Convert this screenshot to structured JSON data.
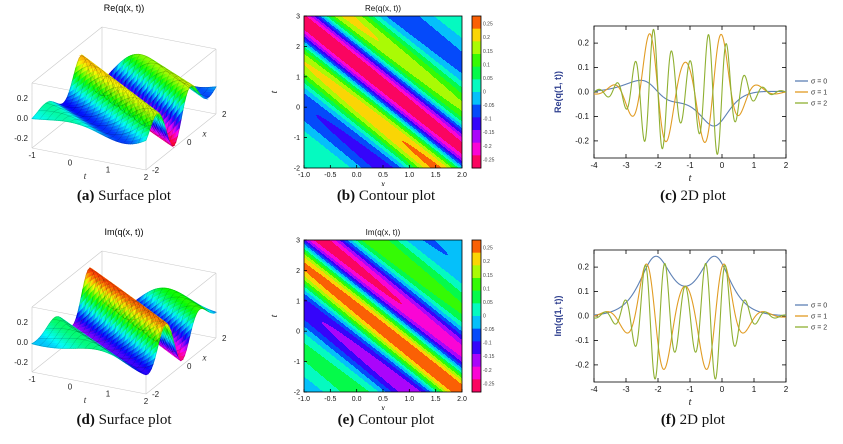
{
  "figure": {
    "background": "#ffffff",
    "captions": [
      {
        "tag": "(a)",
        "text": "Surface plot"
      },
      {
        "tag": "(b)",
        "text": "Contour plot"
      },
      {
        "tag": "(c)",
        "text": "2D plot"
      },
      {
        "tag": "(d)",
        "text": "Surface plot"
      },
      {
        "tag": "(e)",
        "text": "Contour plot"
      },
      {
        "tag": "(f)",
        "text": "2D plot"
      }
    ]
  },
  "chart_data": [
    {
      "id": "a",
      "type": "surface3d",
      "title": "Re(q(x, t))",
      "xlabel": "t",
      "ylabel": "x",
      "t_range": [
        -1,
        2
      ],
      "x_range": [
        -2,
        2
      ],
      "t_ticks": [
        "-1",
        "0",
        "1",
        "2"
      ],
      "x_ticks": [
        "-2",
        "0",
        "2"
      ],
      "z_ticks": [
        "0.2",
        "0.0",
        "-0.2"
      ],
      "zlim": [
        -0.3,
        0.3
      ],
      "colormap": "rainbow wheel: min=magenta/red, mid(0)=cyan, max=red",
      "function": "Re q(x,t) = 0.28 sech(x + 0.6 t - 0.8) cos(3 x + 2.2 t)",
      "model": {
        "A": 0.28,
        "env_k": 1.0,
        "env_ct": 0.6,
        "env_c0": -0.8,
        "ph_x": 3.0,
        "ph_t": 2.2,
        "part": "re"
      }
    },
    {
      "id": "b",
      "type": "contour",
      "title": "Re(q(x, t))",
      "xlabel": "x",
      "ylabel": "t",
      "x_range": [
        -1,
        2
      ],
      "y_range": [
        -2,
        3
      ],
      "x_tick_values": [
        -1,
        -0.5,
        0,
        0.5,
        1,
        1.5,
        2
      ],
      "x_tick_labels": [
        "-1.0",
        "-0.5",
        "0.0",
        "0.5",
        "1.0",
        "1.5",
        "2.0"
      ],
      "y_tick_values": [
        -2,
        -1,
        0,
        1,
        2,
        3
      ],
      "y_tick_labels": [
        "-2",
        "-1",
        "0",
        "1",
        "2",
        "3"
      ],
      "levels": 12,
      "zmax": 0.28,
      "colorbar": {
        "ticks": [
          0.25,
          0.2,
          0.15,
          0.1,
          0.05,
          0,
          -0.05,
          -0.1,
          -0.15,
          -0.2,
          -0.25
        ]
      },
      "colormap": "rainbow wheel: min=magenta/red, mid(0)=cyan, max=red",
      "model": {
        "A": 0.28,
        "env_k": 1.0,
        "env_ct": 0.6,
        "env_c0": -0.8,
        "ph_x": 3.0,
        "ph_t": 2.2,
        "part": "re"
      }
    },
    {
      "id": "c",
      "type": "line2d",
      "xlabel": "t",
      "ylabel": "Re(q(1, t))",
      "ylabel_color": "#2e3f8f",
      "x_range": [
        -4,
        2
      ],
      "y_range": [
        -0.27,
        0.27
      ],
      "x_tick_values": [
        -4,
        -3,
        -2,
        -1,
        0,
        1,
        2
      ],
      "x_tick_labels": [
        "-4",
        "-3",
        "-2",
        "-1",
        "0",
        "1",
        "2"
      ],
      "y_tick_values": [
        -0.2,
        -0.1,
        0,
        0.1,
        0.2
      ],
      "y_tick_labels": [
        "-0.2",
        "-0.1",
        "0.0",
        "0.1",
        "0.2"
      ],
      "envelope": {
        "A": 0.25,
        "centers": [
          -2.1,
          -0.2
        ],
        "k": 2.2
      },
      "carrier": "sin",
      "sign": -1,
      "t0": 2.0,
      "peak_value": 0.25,
      "legend_position": "right",
      "series": [
        {
          "label": "σ = 0",
          "color": "#5e81b5",
          "omega": 1.0,
          "amp_scale": 0.55
        },
        {
          "label": "σ = 1",
          "color": "#e19c24",
          "omega": 5.5,
          "amp_scale": 1
        },
        {
          "label": "σ = 2",
          "color": "#8fb032",
          "omega": 11.0,
          "amp_scale": 1
        }
      ]
    },
    {
      "id": "d",
      "type": "surface3d",
      "title": "Im(q(x, t))",
      "xlabel": "t",
      "ylabel": "x",
      "t_range": [
        -1,
        2
      ],
      "x_range": [
        -2,
        2
      ],
      "t_ticks": [
        "-1",
        "0",
        "1",
        "2"
      ],
      "x_ticks": [
        "-2",
        "0",
        "2"
      ],
      "z_ticks": [
        "0.2",
        "0.0",
        "-0.2"
      ],
      "zlim": [
        -0.3,
        0.3
      ],
      "colormap": "rainbow wheel: min=magenta/red, mid(0)=cyan, max=red",
      "function": "Im q(x,t) = 0.28 sech(x + 0.6 t - 0.8) sin(3 x + 2.2 t)",
      "model": {
        "A": 0.28,
        "env_k": 1.0,
        "env_ct": 0.6,
        "env_c0": -0.8,
        "ph_x": 3.0,
        "ph_t": 2.2,
        "part": "im"
      }
    },
    {
      "id": "e",
      "type": "contour",
      "title": "Im(q(x, t))",
      "xlabel": "x",
      "ylabel": "t",
      "x_range": [
        -1,
        2
      ],
      "y_range": [
        -2,
        3
      ],
      "x_tick_values": [
        -1,
        -0.5,
        0,
        0.5,
        1,
        1.5,
        2
      ],
      "x_tick_labels": [
        "-1.0",
        "-0.5",
        "0.0",
        "0.5",
        "1.0",
        "1.5",
        "2.0"
      ],
      "y_tick_values": [
        -2,
        -1,
        0,
        1,
        2,
        3
      ],
      "y_tick_labels": [
        "-2",
        "-1",
        "0",
        "1",
        "2",
        "3"
      ],
      "levels": 12,
      "zmax": 0.28,
      "colorbar": {
        "ticks": [
          0.25,
          0.2,
          0.15,
          0.1,
          0.05,
          0,
          -0.05,
          -0.1,
          -0.15,
          -0.2,
          -0.25
        ]
      },
      "colormap": "rainbow wheel: min=magenta/red, mid(0)=cyan, max=red",
      "model": {
        "A": 0.28,
        "env_k": 1.0,
        "env_ct": 0.6,
        "env_c0": -0.8,
        "ph_x": 3.0,
        "ph_t": 2.2,
        "part": "im"
      }
    },
    {
      "id": "f",
      "type": "line2d",
      "xlabel": "t",
      "ylabel": "Im(q(1, t))",
      "ylabel_color": "#2e3f8f",
      "x_range": [
        -4,
        2
      ],
      "y_range": [
        -0.27,
        0.27
      ],
      "x_tick_values": [
        -4,
        -3,
        -2,
        -1,
        0,
        1,
        2
      ],
      "x_tick_labels": [
        "-4",
        "-3",
        "-2",
        "-1",
        "0",
        "1",
        "2"
      ],
      "y_tick_values": [
        -0.2,
        -0.1,
        0,
        0.1,
        0.2
      ],
      "y_tick_labels": [
        "-0.2",
        "-0.1",
        "0.0",
        "0.1",
        "0.2"
      ],
      "envelope": {
        "A": 0.25,
        "centers": [
          -2.1,
          -0.2
        ],
        "k": 2.2
      },
      "carrier": "cos",
      "sign": 1,
      "t0": 1.15,
      "peak_value": 0.25,
      "legend_position": "right",
      "series": [
        {
          "label": "σ = 0",
          "color": "#5e81b5",
          "omega": 0.35,
          "amp_scale": 1
        },
        {
          "label": "σ = 1",
          "color": "#e19c24",
          "omega": 5.0,
          "amp_scale": 1
        },
        {
          "label": "σ = 2",
          "color": "#8fb032",
          "omega": 10.0,
          "amp_scale": 1
        }
      ]
    }
  ]
}
